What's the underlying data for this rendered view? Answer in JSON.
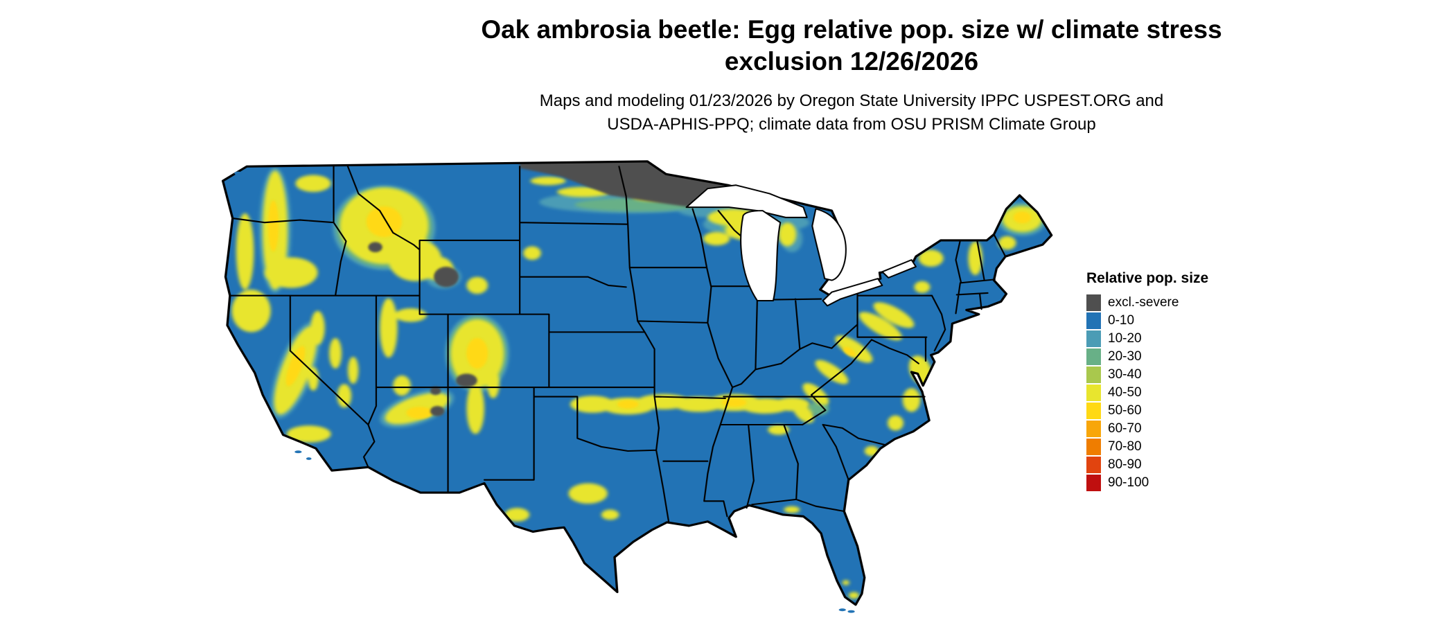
{
  "title": {
    "line1": "Oak ambrosia beetle: Egg relative pop. size w/ climate stress",
    "line2": "exclusion 12/26/2026"
  },
  "subtitle": {
    "line1": "Maps and modeling 01/23/2026 by Oregon State University IPPC USPEST.ORG and",
    "line2": "USDA-APHIS-PPQ; climate data from OSU PRISM Climate Group"
  },
  "legend": {
    "title": "Relative pop. size",
    "items": [
      {
        "label": "excl.-severe",
        "color": "#4f4f4f"
      },
      {
        "label": "0-10",
        "color": "#2273b5"
      },
      {
        "label": "10-20",
        "color": "#4b9cb5"
      },
      {
        "label": "20-30",
        "color": "#68b087"
      },
      {
        "label": "30-40",
        "color": "#a9c84d"
      },
      {
        "label": "40-50",
        "color": "#e8e52e"
      },
      {
        "label": "50-60",
        "color": "#ffd914"
      },
      {
        "label": "60-70",
        "color": "#f8a60a"
      },
      {
        "label": "70-80",
        "color": "#ef7d00"
      },
      {
        "label": "80-90",
        "color": "#e1440f"
      },
      {
        "label": "90-100",
        "color": "#bf0f0f"
      }
    ]
  },
  "map": {
    "region": "Contiguous United States",
    "border_color": "#000000",
    "water_color": "#ffffff"
  }
}
